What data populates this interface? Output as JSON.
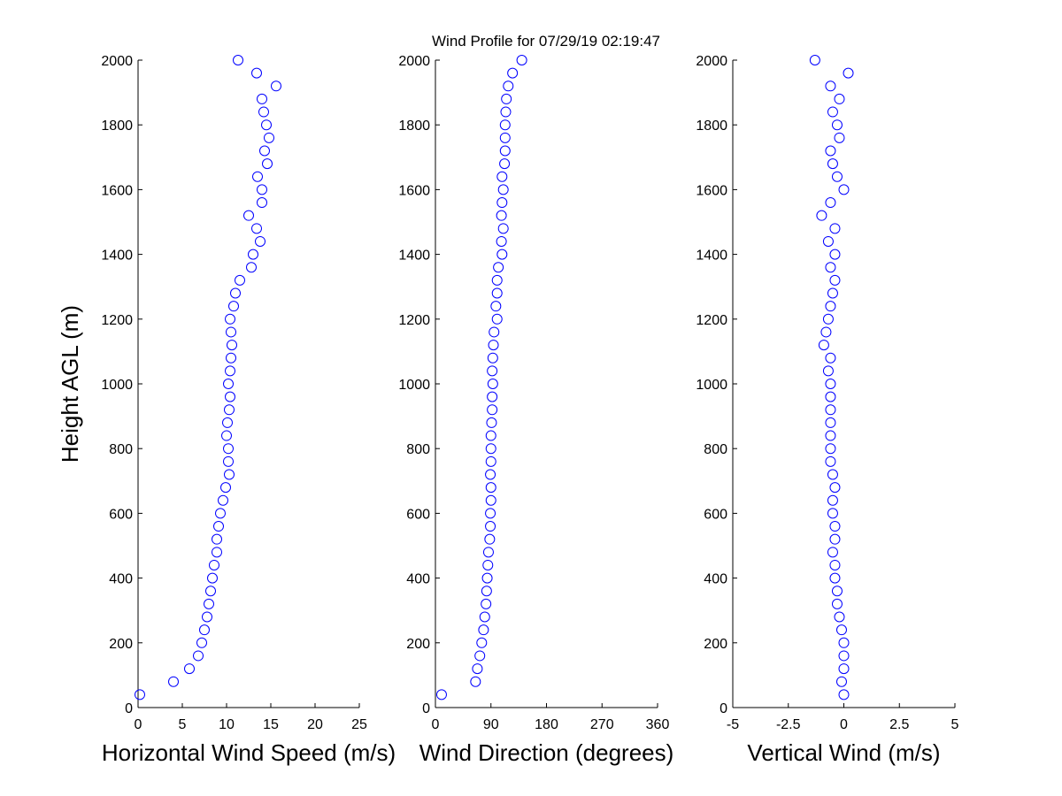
{
  "title": "Wind Profile for  07/29/19 02:19:47",
  "chart_data": [
    {
      "type": "scatter",
      "xlabel": "Horizontal Wind Speed (m/s)",
      "ylabel": "Height AGL (m)",
      "color": "#0000ff",
      "xlim": [
        0,
        25
      ],
      "xticks": [
        0,
        5,
        10,
        15,
        20,
        25
      ],
      "ylim": [
        0,
        2000
      ],
      "yticks": [
        0,
        200,
        400,
        600,
        800,
        1000,
        1200,
        1400,
        1600,
        1800,
        2000
      ],
      "x": [
        0.2,
        4,
        5.8,
        6.8,
        7.2,
        7.5,
        7.8,
        8,
        8.2,
        8.4,
        8.6,
        8.9,
        8.9,
        9.1,
        9.3,
        9.6,
        9.9,
        10.3,
        10.2,
        10.2,
        10,
        10.1,
        10.3,
        10.4,
        10.2,
        10.4,
        10.5,
        10.6,
        10.5,
        10.4,
        10.8,
        11,
        11.5,
        12.8,
        13,
        13.8,
        13.4,
        12.5,
        14,
        14,
        13.5,
        14.6,
        14.3,
        14.8,
        14.5,
        14.2,
        14,
        15.6,
        13.4,
        11.3
      ],
      "y": [
        40,
        80,
        120,
        160,
        200,
        240,
        280,
        320,
        360,
        400,
        440,
        480,
        520,
        560,
        600,
        640,
        680,
        720,
        760,
        800,
        840,
        880,
        920,
        960,
        1000,
        1040,
        1080,
        1120,
        1160,
        1200,
        1240,
        1280,
        1320,
        1360,
        1400,
        1440,
        1480,
        1520,
        1560,
        1600,
        1640,
        1680,
        1720,
        1760,
        1800,
        1840,
        1880,
        1920,
        1960,
        2000
      ]
    },
    {
      "type": "scatter",
      "xlabel": "Wind Direction (degrees)",
      "color": "#0000ff",
      "xlim": [
        0,
        360
      ],
      "xticks": [
        0,
        90,
        180,
        270,
        360
      ],
      "ylim": [
        0,
        2000
      ],
      "yticks": [
        0,
        200,
        400,
        600,
        800,
        1000,
        1200,
        1400,
        1600,
        1800,
        2000
      ],
      "x": [
        10,
        65,
        68,
        72,
        75,
        78,
        80,
        82,
        83,
        84,
        85,
        86,
        88,
        89,
        89,
        90,
        90,
        89,
        90,
        90,
        90,
        91,
        92,
        92,
        93,
        92,
        93,
        94,
        95,
        100,
        98,
        100,
        100,
        102,
        108,
        107,
        110,
        107,
        108,
        110,
        108,
        112,
        113,
        113,
        113,
        114,
        115,
        118,
        125,
        140
      ],
      "y": [
        40,
        80,
        120,
        160,
        200,
        240,
        280,
        320,
        360,
        400,
        440,
        480,
        520,
        560,
        600,
        640,
        680,
        720,
        760,
        800,
        840,
        880,
        920,
        960,
        1000,
        1040,
        1080,
        1120,
        1160,
        1200,
        1240,
        1280,
        1320,
        1360,
        1400,
        1440,
        1480,
        1520,
        1560,
        1600,
        1640,
        1680,
        1720,
        1760,
        1800,
        1840,
        1880,
        1920,
        1960,
        2000
      ]
    },
    {
      "type": "scatter",
      "xlabel": "Vertical Wind (m/s)",
      "color": "#0000ff",
      "xlim": [
        -5,
        5
      ],
      "xticks": [
        -5,
        -2.5,
        0,
        2.5,
        5
      ],
      "ylim": [
        0,
        2000
      ],
      "yticks": [
        0,
        200,
        400,
        600,
        800,
        1000,
        1200,
        1400,
        1600,
        1800,
        2000
      ],
      "x": [
        0,
        -0.1,
        0,
        0,
        0,
        -0.1,
        -0.2,
        -0.3,
        -0.3,
        -0.4,
        -0.4,
        -0.5,
        -0.4,
        -0.4,
        -0.5,
        -0.5,
        -0.4,
        -0.5,
        -0.6,
        -0.6,
        -0.6,
        -0.6,
        -0.6,
        -0.6,
        -0.6,
        -0.7,
        -0.6,
        -0.9,
        -0.8,
        -0.7,
        -0.6,
        -0.5,
        -0.4,
        -0.6,
        -0.4,
        -0.7,
        -0.4,
        -1,
        -0.6,
        0,
        -0.3,
        -0.5,
        -0.6,
        -0.2,
        -0.3,
        -0.5,
        -0.2,
        -0.6,
        0.2,
        -1.3
      ],
      "y": [
        40,
        80,
        120,
        160,
        200,
        240,
        280,
        320,
        360,
        400,
        440,
        480,
        520,
        560,
        600,
        640,
        680,
        720,
        760,
        800,
        840,
        880,
        920,
        960,
        1000,
        1040,
        1080,
        1120,
        1160,
        1200,
        1240,
        1280,
        1320,
        1360,
        1400,
        1440,
        1480,
        1520,
        1560,
        1600,
        1640,
        1680,
        1720,
        1760,
        1800,
        1840,
        1880,
        1920,
        1960,
        2000
      ]
    }
  ]
}
